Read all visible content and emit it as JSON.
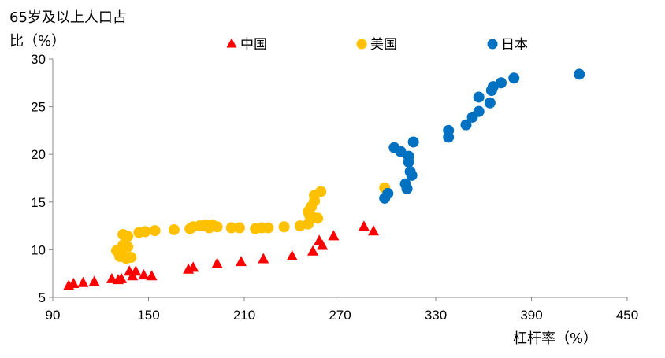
{
  "chart_data": {
    "type": "scatter",
    "ylabel_lines": [
      "65岁及以上人口占",
      "比（%）"
    ],
    "xlabel": "杠杆率（%）",
    "xlim": [
      90,
      450
    ],
    "ylim": [
      5,
      30
    ],
    "xticks": [
      90,
      150,
      210,
      270,
      330,
      390,
      450
    ],
    "yticks": [
      5,
      10,
      15,
      20,
      25,
      30
    ],
    "grid": false,
    "legend_position": "top",
    "series": [
      {
        "name": "中国",
        "marker": "triangle",
        "color": "#ff0000",
        "points": [
          [
            100,
            6.2
          ],
          [
            103,
            6.4
          ],
          [
            109,
            6.5
          ],
          [
            116,
            6.6
          ],
          [
            127,
            6.9
          ],
          [
            131,
            6.8
          ],
          [
            133,
            6.9
          ],
          [
            138,
            7.7
          ],
          [
            140,
            7.2
          ],
          [
            142,
            7.7
          ],
          [
            147,
            7.3
          ],
          [
            152,
            7.2
          ],
          [
            175,
            7.9
          ],
          [
            178,
            8.1
          ],
          [
            193,
            8.5
          ],
          [
            208,
            8.7
          ],
          [
            222,
            9.0
          ],
          [
            240,
            9.3
          ],
          [
            253,
            9.8
          ],
          [
            257,
            10.9
          ],
          [
            259,
            10.4
          ],
          [
            266,
            11.4
          ],
          [
            285,
            12.4
          ],
          [
            291,
            11.9
          ]
        ]
      },
      {
        "name": "美国",
        "marker": "circle",
        "color": "#ffc000",
        "points": [
          [
            130,
            9.9
          ],
          [
            132,
            9.3
          ],
          [
            133,
            9.5
          ],
          [
            134,
            10.1
          ],
          [
            134,
            10.5
          ],
          [
            134,
            11.6
          ],
          [
            136,
            9.1
          ],
          [
            137,
            11.4
          ],
          [
            137,
            10.3
          ],
          [
            139,
            9.2
          ],
          [
            144,
            11.8
          ],
          [
            148,
            11.9
          ],
          [
            154,
            12.0
          ],
          [
            166,
            12.1
          ],
          [
            176,
            12.2
          ],
          [
            178,
            12.4
          ],
          [
            182,
            12.5
          ],
          [
            184,
            12.5
          ],
          [
            186,
            12.6
          ],
          [
            188,
            12.3
          ],
          [
            190,
            12.6
          ],
          [
            193,
            12.4
          ],
          [
            202,
            12.3
          ],
          [
            207,
            12.3
          ],
          [
            217,
            12.2
          ],
          [
            221,
            12.3
          ],
          [
            225,
            12.3
          ],
          [
            235,
            12.4
          ],
          [
            245,
            12.5
          ],
          [
            250,
            12.7
          ],
          [
            250,
            14.0
          ],
          [
            251,
            13.6
          ],
          [
            252,
            14.5
          ],
          [
            253,
            13.4
          ],
          [
            254,
            15.1
          ],
          [
            254,
            15.7
          ],
          [
            256,
            13.3
          ],
          [
            258,
            16.1
          ],
          [
            298,
            16.5
          ]
        ]
      },
      {
        "name": "日本",
        "marker": "circle",
        "color": "#0070c0",
        "points": [
          [
            298,
            15.4
          ],
          [
            300,
            15.9
          ],
          [
            304,
            20.7
          ],
          [
            308,
            20.3
          ],
          [
            311,
            16.9
          ],
          [
            312,
            16.4
          ],
          [
            313,
            19.8
          ],
          [
            313,
            19.2
          ],
          [
            314,
            18.2
          ],
          [
            315,
            17.8
          ],
          [
            316,
            21.3
          ],
          [
            338,
            22.5
          ],
          [
            338,
            21.8
          ],
          [
            349,
            23.1
          ],
          [
            353,
            23.9
          ],
          [
            357,
            24.5
          ],
          [
            357,
            26.0
          ],
          [
            364,
            25.4
          ],
          [
            365,
            26.7
          ],
          [
            366,
            27.1
          ],
          [
            371,
            27.5
          ],
          [
            379,
            28.0
          ],
          [
            420,
            28.4
          ]
        ]
      }
    ]
  }
}
